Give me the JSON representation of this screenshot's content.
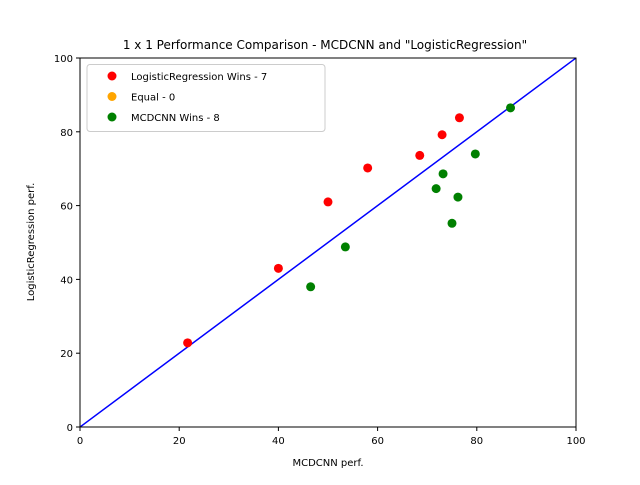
{
  "chart_data": {
    "type": "scatter",
    "title": "1 x 1 Performance Comparison - MCDCNN and \"LogisticRegression\"",
    "xlabel": "MCDCNN perf.",
    "ylabel": "LogisticRegression perf.",
    "xlim": [
      0,
      100
    ],
    "ylim": [
      0,
      100
    ],
    "xticks": [
      0,
      20,
      40,
      60,
      80,
      100
    ],
    "yticks": [
      0,
      20,
      40,
      60,
      80,
      100
    ],
    "grid": false,
    "legend_position": "top-left",
    "diagonal": {
      "from": [
        0,
        0
      ],
      "to": [
        100,
        100
      ],
      "color": "#0000ff"
    },
    "series": [
      {
        "name": "LogisticRegression Wins - 7",
        "color": "#ff0000",
        "points": [
          {
            "x": 21.7,
            "y": 22.8
          },
          {
            "x": 40.0,
            "y": 43.0
          },
          {
            "x": 50.0,
            "y": 61.0
          },
          {
            "x": 58.0,
            "y": 70.2
          },
          {
            "x": 68.5,
            "y": 73.6
          },
          {
            "x": 73.0,
            "y": 79.2
          },
          {
            "x": 76.5,
            "y": 83.8
          }
        ]
      },
      {
        "name": "Equal - 0",
        "color": "#ffa500",
        "points": []
      },
      {
        "name": "MCDCNN Wins - 8",
        "color": "#008000",
        "points": [
          {
            "x": 46.5,
            "y": 38.0
          },
          {
            "x": 53.5,
            "y": 48.8
          },
          {
            "x": 71.8,
            "y": 64.6
          },
          {
            "x": 73.2,
            "y": 68.6
          },
          {
            "x": 75.0,
            "y": 55.2
          },
          {
            "x": 76.2,
            "y": 62.3
          },
          {
            "x": 79.7,
            "y": 74.0
          },
          {
            "x": 86.8,
            "y": 86.5
          }
        ]
      }
    ]
  }
}
